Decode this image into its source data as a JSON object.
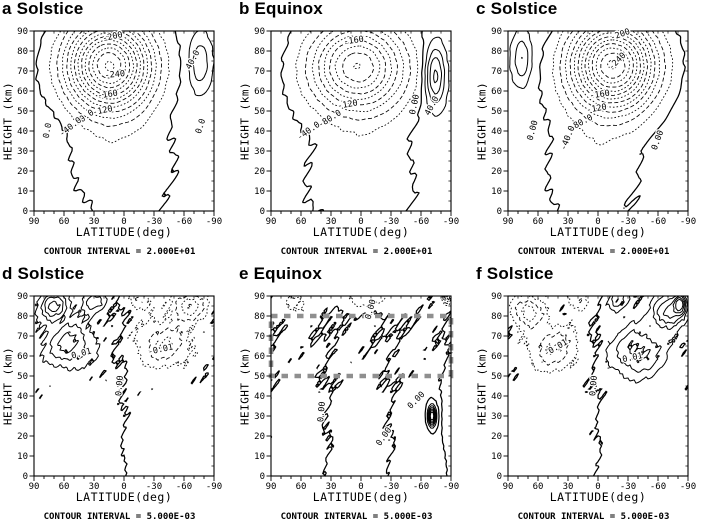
{
  "figure": {
    "description": "Six-panel latitude-height contour figure",
    "ink_color": "#000000",
    "background_color": "#ffffff",
    "highlight_color": "#8f8f8f"
  },
  "chart_data": [
    {
      "type": "contour",
      "title": "a Solstice",
      "xlabel": "LATITUDE(deg)",
      "ylabel": "HEIGHT (km)",
      "caption": "CONTOUR INTERVAL = 2.000E+01",
      "contour_interval": 20,
      "xlim": [
        90,
        -90
      ],
      "ylim": [
        0,
        90
      ],
      "x_ticks": [
        90,
        60,
        30,
        0,
        -30,
        -60,
        -90
      ],
      "y_ticks": [
        0,
        10,
        20,
        30,
        40,
        50,
        60,
        70,
        80,
        90
      ],
      "levels": {
        "min": -260,
        "max": 60,
        "step": 20
      },
      "field": {
        "base": 12,
        "blobs": [
          {
            "a": -272,
            "lat": 15,
            "z": 73,
            "slat": 40,
            "sz": 21
          },
          {
            "a": 48,
            "lat": -76,
            "z": 74,
            "slat": 10,
            "sz": 13
          },
          {
            "a": -25,
            "lat": 0,
            "z": 22,
            "slat": 55,
            "sz": 38
          }
        ],
        "noise": {
          "a": 2.2,
          "k1": 0.18,
          "k2": 0.4,
          "k3": 0.12,
          "k4": 0.3,
          "p1": 0.3,
          "p2": 1.1
        }
      },
      "contour_labels": [
        {
          "text": "-200",
          "lat": 11,
          "z": 86,
          "rot": -12
        },
        {
          "text": "-240",
          "lat": 9,
          "z": 67,
          "rot": -5
        },
        {
          "text": "-160",
          "lat": 16,
          "z": 57,
          "rot": -8
        },
        {
          "text": "-120",
          "lat": 21,
          "z": 49,
          "rot": -12
        },
        {
          "text": "-80.0",
          "lat": 40,
          "z": 45,
          "rot": -35
        },
        {
          "text": "-40.0",
          "lat": 52,
          "z": 41,
          "rot": -38
        },
        {
          "text": "0.0",
          "lat": 74,
          "z": 40,
          "rot": -80
        },
        {
          "text": "40.0",
          "lat": -71,
          "z": 75,
          "rot": -62
        },
        {
          "text": "0.0",
          "lat": -79,
          "z": 42,
          "rot": -72
        }
      ]
    },
    {
      "type": "contour",
      "title": "b Equinox",
      "xlabel": "LATITUDE(deg)",
      "ylabel": "HEIGHT (km)",
      "caption": "CONTOUR INTERVAL = 2.000E+01",
      "contour_interval": 20,
      "xlim": [
        90,
        -90
      ],
      "ylim": [
        0,
        90
      ],
      "x_ticks": [
        90,
        60,
        30,
        0,
        -30,
        -60,
        -90
      ],
      "y_ticks": [
        0,
        10,
        20,
        30,
        40,
        50,
        60,
        70,
        80,
        90
      ],
      "levels": {
        "min": -180,
        "max": 80,
        "step": 20
      },
      "field": {
        "base": 10,
        "blobs": [
          {
            "a": -190,
            "lat": 3,
            "z": 72,
            "slat": 45,
            "sz": 21
          },
          {
            "a": 85,
            "lat": -74,
            "z": 68,
            "slat": 10,
            "sz": 15
          },
          {
            "a": -22,
            "lat": 0,
            "z": 18,
            "slat": 60,
            "sz": 32
          }
        ],
        "noise": {
          "a": 2.2,
          "k1": 0.18,
          "k2": 0.4,
          "k3": 0.12,
          "k4": 0.3,
          "p1": 2.1,
          "p2": 0.7
        }
      },
      "contour_labels": [
        {
          "text": "-160",
          "lat": 7,
          "z": 84,
          "rot": -8
        },
        {
          "text": "-120",
          "lat": 13,
          "z": 52,
          "rot": -10
        },
        {
          "text": "-80.0",
          "lat": 30,
          "z": 45,
          "rot": -32
        },
        {
          "text": "-40.0",
          "lat": 51,
          "z": 39,
          "rot": -35
        },
        {
          "text": "0.00",
          "lat": -56,
          "z": 53,
          "rot": -78
        },
        {
          "text": "40.0",
          "lat": -73,
          "z": 52,
          "rot": -62
        }
      ]
    },
    {
      "type": "contour",
      "title": "c Solstice",
      "xlabel": "LATITUDE(deg)",
      "ylabel": "HEIGHT (km)",
      "caption": "CONTOUR INTERVAL = 2.000E+01",
      "contour_interval": 20,
      "xlim": [
        90,
        -90
      ],
      "ylim": [
        0,
        90
      ],
      "x_ticks": [
        90,
        60,
        30,
        0,
        -30,
        -60,
        -90
      ],
      "y_ticks": [
        0,
        10,
        20,
        30,
        40,
        50,
        60,
        70,
        80,
        90
      ],
      "levels": {
        "min": -260,
        "max": 60,
        "step": 20
      },
      "field": {
        "base": 12,
        "blobs": [
          {
            "a": -272,
            "lat": -15,
            "z": 73,
            "slat": 40,
            "sz": 21
          },
          {
            "a": 48,
            "lat": 76,
            "z": 76,
            "slat": 9,
            "sz": 12
          },
          {
            "a": -25,
            "lat": 5,
            "z": 24,
            "slat": 55,
            "sz": 38
          }
        ],
        "noise": {
          "a": 2.2,
          "k1": 0.18,
          "k2": 0.4,
          "k3": 0.12,
          "k4": 0.3,
          "p1": 4.0,
          "p2": 2.3
        }
      },
      "contour_labels": [
        {
          "text": "-200",
          "lat": -23,
          "z": 87,
          "rot": -20
        },
        {
          "text": "-240",
          "lat": -21,
          "z": 74,
          "rot": -45
        },
        {
          "text": "-160",
          "lat": -2,
          "z": 57,
          "rot": -8
        },
        {
          "text": "-120",
          "lat": 1,
          "z": 50,
          "rot": -10
        },
        {
          "text": "-80.0",
          "lat": 16,
          "z": 43,
          "rot": -28
        },
        {
          "text": "-40.0",
          "lat": 28,
          "z": 36,
          "rot": -68
        },
        {
          "text": "0.00",
          "lat": 63,
          "z": 40,
          "rot": -75
        },
        {
          "text": "0.00",
          "lat": -62,
          "z": 35,
          "rot": -70
        }
      ]
    },
    {
      "type": "contour",
      "title": "d Solstice",
      "xlabel": "LATITUDE(deg)",
      "ylabel": "HEIGHT (km)",
      "caption": "CONTOUR INTERVAL = 5.000E-03",
      "contour_interval": 0.005,
      "xlim": [
        90,
        -90
      ],
      "ylim": [
        0,
        90
      ],
      "x_ticks": [
        90,
        60,
        30,
        0,
        -30,
        -60,
        -90
      ],
      "y_ticks": [
        0,
        10,
        20,
        30,
        40,
        50,
        60,
        70,
        80,
        90
      ],
      "levels": {
        "min": -0.03,
        "max": 0.03,
        "step": 0.005
      },
      "field": {
        "base": 0,
        "grad": {
          "a": 0.0009,
          "w": 8
        },
        "blobs": [
          {
            "a": 0.016,
            "lat": 55,
            "z": 66,
            "slat": 24,
            "sz": 11
          },
          {
            "a": 0.02,
            "lat": 70,
            "z": 85,
            "slat": 14,
            "sz": 7
          },
          {
            "a": 0.012,
            "lat": 30,
            "z": 87,
            "slat": 12,
            "sz": 5
          },
          {
            "a": -0.014,
            "lat": -40,
            "z": 66,
            "slat": 26,
            "sz": 11
          },
          {
            "a": -0.018,
            "lat": -65,
            "z": 85,
            "slat": 16,
            "sz": 7
          },
          {
            "a": -0.01,
            "lat": -15,
            "z": 88,
            "slat": 10,
            "sz": 5
          }
        ],
        "noise": {
          "a": 0.0024,
          "k1": 0.45,
          "k2": 0.8,
          "k3": 0.3,
          "k4": 0.55,
          "p1": 1.2,
          "p2": 0.4,
          "zfade": [
            35,
            70
          ]
        }
      },
      "contour_labels": [
        {
          "text": "0.01",
          "lat": 42,
          "z": 60,
          "rot": -15
        },
        {
          "text": "-0.01",
          "lat": -37,
          "z": 62,
          "rot": -12
        },
        {
          "text": "0.00",
          "lat": 2,
          "z": 45,
          "rot": -85
        }
      ]
    },
    {
      "type": "contour",
      "title": "e Equinox",
      "xlabel": "LATITUDE(deg)",
      "ylabel": "HEIGHT (km)",
      "caption": "CONTOUR INTERVAL = 5.000E-03",
      "contour_interval": 0.005,
      "xlim": [
        90,
        -90
      ],
      "ylim": [
        0,
        90
      ],
      "x_ticks": [
        90,
        60,
        30,
        0,
        -30,
        -60,
        -90
      ],
      "y_ticks": [
        0,
        10,
        20,
        30,
        40,
        50,
        60,
        70,
        80,
        90
      ],
      "levels": {
        "min": -0.03,
        "max": 0.03,
        "step": 0.005
      },
      "highlight_band": {
        "z_bottom": 50,
        "z_top": 80,
        "color": "#8f8f8f"
      },
      "field": {
        "base": 0,
        "cos_bg": {
          "a": 0.0012,
          "k": 0.05,
          "lat0": 2
        },
        "blobs": [
          {
            "a": -0.009,
            "lat": -5,
            "z": 89,
            "slat": 28,
            "sz": 6
          },
          {
            "a": -0.006,
            "lat": 65,
            "z": 86,
            "slat": 12,
            "sz": 6
          },
          {
            "a": 0.04,
            "lat": -71,
            "z": 30,
            "slat": 3.5,
            "sz": 4.5
          },
          {
            "a": -0.035,
            "lat": -86,
            "z": 91,
            "slat": 4,
            "sz": 4
          },
          {
            "a": 0.005,
            "lat": -88,
            "z": 35,
            "slat": 5,
            "sz": 20
          }
        ],
        "noise": {
          "a": 0.0016,
          "k1": 0.45,
          "k2": 0.8,
          "k3": 0.3,
          "k4": 0.55,
          "p1": 5.1,
          "p2": 2.8,
          "zfade": [
            30,
            75
          ]
        }
      },
      "contour_labels": [
        {
          "text": "0.00",
          "lat": -12,
          "z": 83,
          "rot": -75
        },
        {
          "text": "0.00",
          "lat": 37,
          "z": 32,
          "rot": -85
        },
        {
          "text": "0.00",
          "lat": -25,
          "z": 19,
          "rot": -55
        },
        {
          "text": "0.00",
          "lat": -57,
          "z": 37,
          "rot": -45
        }
      ]
    },
    {
      "type": "contour",
      "title": "f Solstice",
      "xlabel": "LATITUDE(deg)",
      "ylabel": "HEIGHT (km)",
      "caption": "CONTOUR INTERVAL = 5.000E-03",
      "contour_interval": 0.005,
      "xlim": [
        90,
        -90
      ],
      "ylim": [
        0,
        90
      ],
      "x_ticks": [
        90,
        60,
        30,
        0,
        -30,
        -60,
        -90
      ],
      "y_ticks": [
        0,
        10,
        20,
        30,
        40,
        50,
        60,
        70,
        80,
        90
      ],
      "levels": {
        "min": -0.03,
        "max": 0.03,
        "step": 0.005
      },
      "field": {
        "base": 0,
        "grad": {
          "a": -0.0009,
          "w": 8
        },
        "blobs": [
          {
            "a": -0.014,
            "lat": 45,
            "z": 64,
            "slat": 24,
            "sz": 11
          },
          {
            "a": -0.018,
            "lat": 70,
            "z": 82,
            "slat": 14,
            "sz": 7
          },
          {
            "a": -0.01,
            "lat": 20,
            "z": 88,
            "slat": 10,
            "sz": 5
          },
          {
            "a": 0.016,
            "lat": -40,
            "z": 62,
            "slat": 26,
            "sz": 12
          },
          {
            "a": 0.022,
            "lat": -70,
            "z": 82,
            "slat": 14,
            "sz": 8
          },
          {
            "a": 0.03,
            "lat": -82,
            "z": 86,
            "slat": 6,
            "sz": 5
          },
          {
            "a": 0.012,
            "lat": -20,
            "z": 88,
            "slat": 10,
            "sz": 5
          }
        ],
        "noise": {
          "a": 0.0024,
          "k1": 0.45,
          "k2": 0.8,
          "k3": 0.3,
          "k4": 0.55,
          "p1": 3.3,
          "p2": 1.9,
          "zfade": [
            35,
            70
          ]
        }
      },
      "contour_labels": [
        {
          "text": "-0.01",
          "lat": 41,
          "z": 63,
          "rot": -30
        },
        {
          "text": "0.01",
          "lat": -35,
          "z": 58,
          "rot": -12
        },
        {
          "text": "0.00",
          "lat": 2,
          "z": 45,
          "rot": -85
        }
      ]
    }
  ]
}
